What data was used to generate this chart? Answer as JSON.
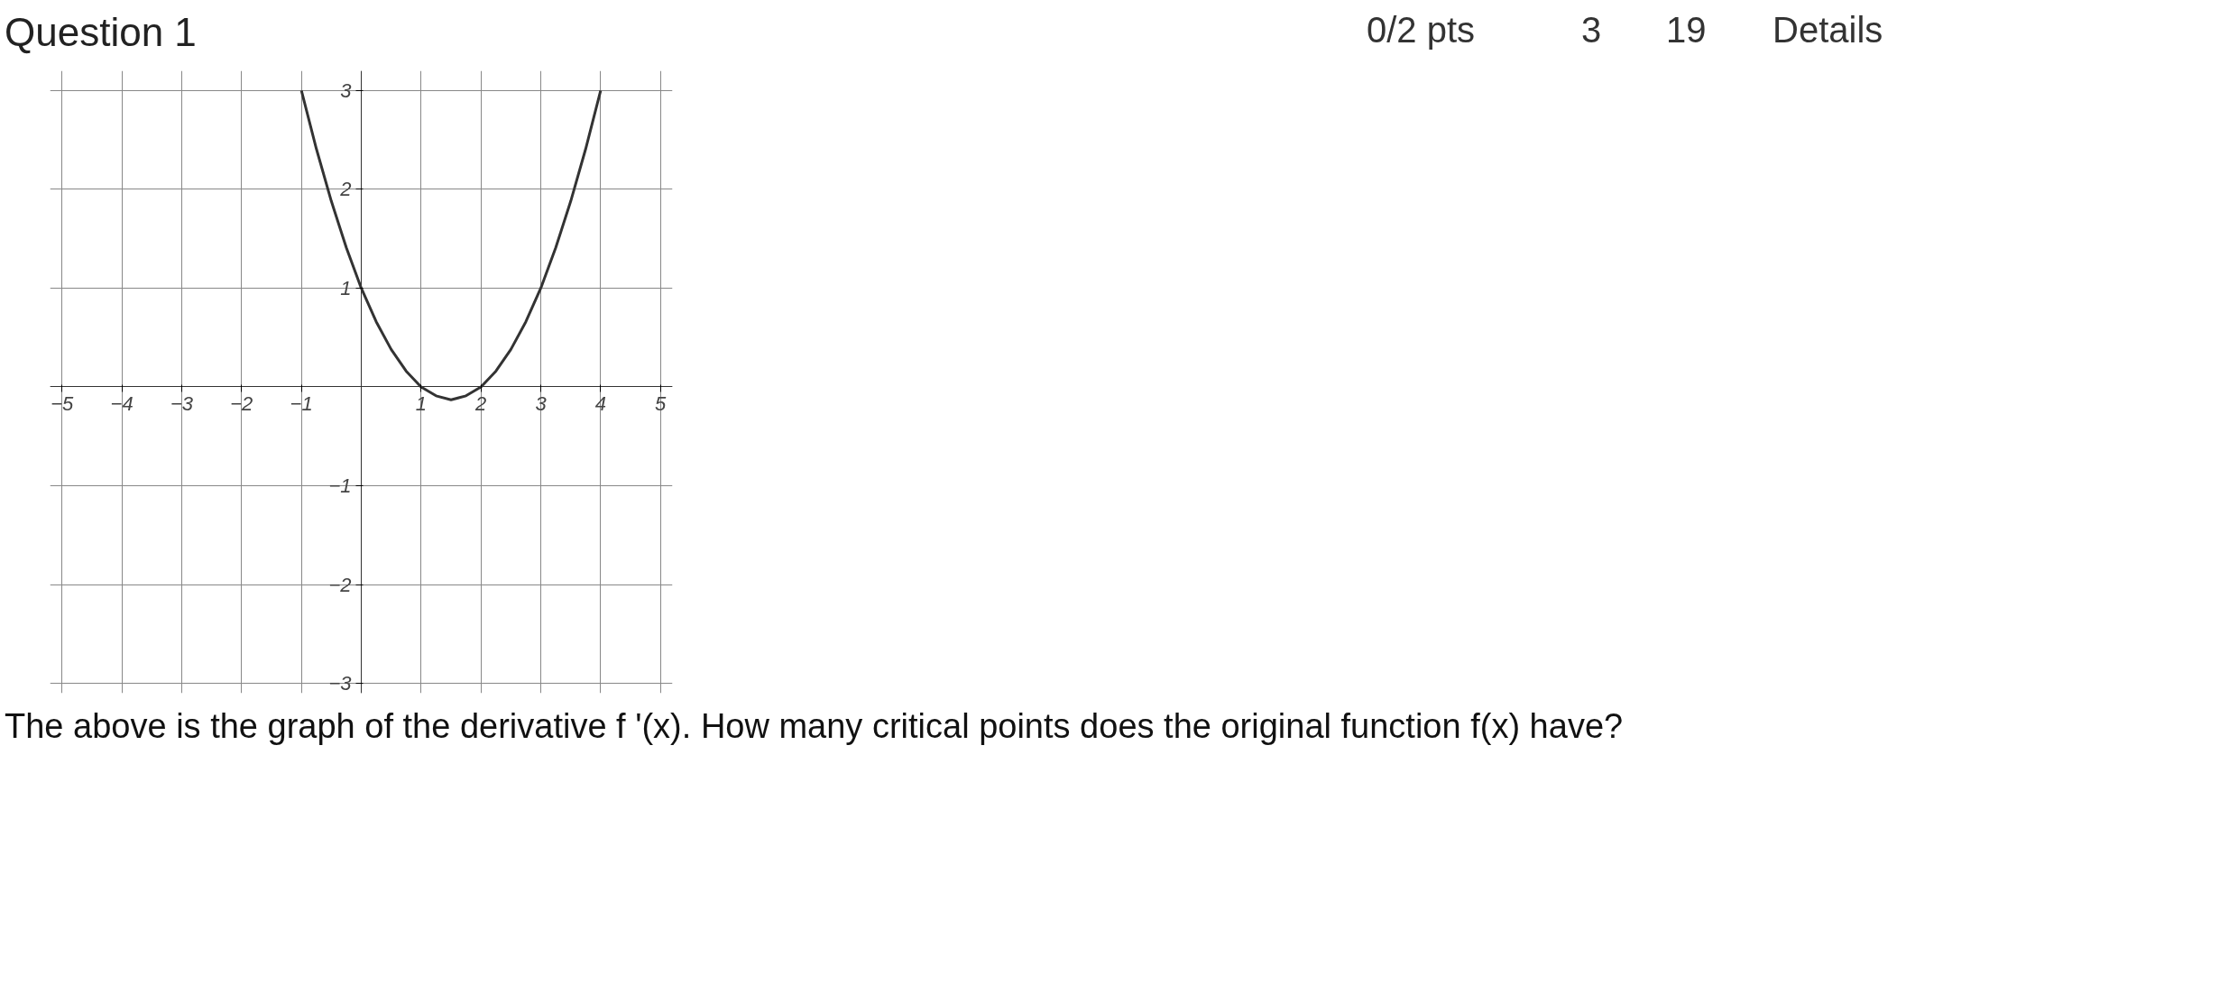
{
  "chart_data": {
    "type": "line",
    "title": "Question 1",
    "annotations": [
      "0/2 pts",
      "3",
      "19",
      "Details",
      "The above is the graph of the derivative f '(x). How many critical points does the original function f(x) have?"
    ],
    "x": [
      -1,
      -0.75,
      -0.5,
      -0.25,
      0,
      0.25,
      0.5,
      0.75,
      1,
      1.25,
      1.5,
      1.75,
      2,
      2.25,
      2.5,
      2.75,
      3,
      3.25,
      3.5,
      3.75,
      4
    ],
    "series": [
      {
        "color": "#333333",
        "values": [
          3,
          2.41,
          1.88,
          1.41,
          1,
          0.66,
          0.38,
          0.16,
          0,
          -0.09,
          -0.13,
          -0.09,
          0,
          0.16,
          0.38,
          0.66,
          1,
          1.41,
          1.88,
          2.41,
          3
        ]
      }
    ],
    "xlim": [
      -5.2,
      5.2
    ],
    "ylim": [
      -3.1,
      3.2
    ],
    "xticks": [
      -5,
      -4,
      -3,
      -2,
      -1,
      1,
      2,
      3,
      4,
      5
    ],
    "yticks": [
      -3,
      -2,
      -1,
      1,
      2,
      3
    ],
    "grid": true,
    "marker": "none",
    "line_style": "solid"
  }
}
